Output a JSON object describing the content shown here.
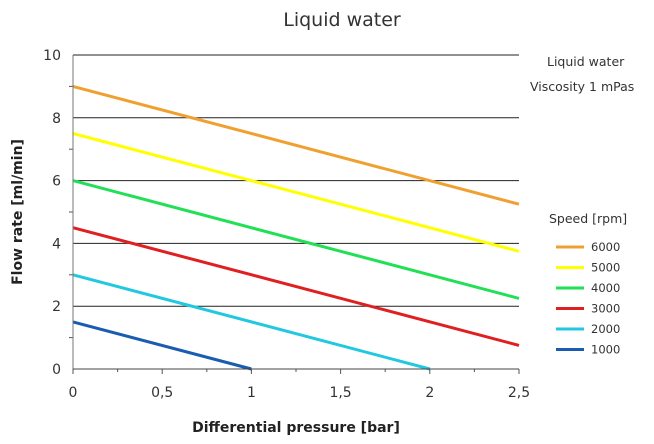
{
  "chart_data": {
    "type": "line",
    "title": "Liquid water",
    "xlabel": "Differential pressure [bar]",
    "ylabel": "Flow rate [ml/min]",
    "xlim": [
      0,
      2.5
    ],
    "ylim": [
      0,
      10
    ],
    "xticks": [
      "0",
      "0,5",
      "1",
      "1,5",
      "2",
      "2,5"
    ],
    "yticks": [
      "0",
      "2",
      "4",
      "6",
      "8",
      "10"
    ],
    "grid": "horizontal",
    "annotations": [
      "Liquid water",
      "Viscosity 1 mPas"
    ],
    "legend_title": "Speed [rpm]",
    "legend_position": "right",
    "series": [
      {
        "name": "6000",
        "color": "#f0a030",
        "x": [
          0,
          2.5
        ],
        "y": [
          9.0,
          5.25
        ]
      },
      {
        "name": "5000",
        "color": "#ffff00",
        "x": [
          0,
          2.5
        ],
        "y": [
          7.5,
          3.75
        ]
      },
      {
        "name": "4000",
        "color": "#22e055",
        "x": [
          0,
          2.5
        ],
        "y": [
          6.0,
          2.25
        ]
      },
      {
        "name": "3000",
        "color": "#e02020",
        "x": [
          0,
          2.5
        ],
        "y": [
          4.5,
          0.75
        ]
      },
      {
        "name": "2000",
        "color": "#22c8e0",
        "x": [
          0,
          2.0
        ],
        "y": [
          3.0,
          0.0
        ]
      },
      {
        "name": "1000",
        "color": "#1a5cb0",
        "x": [
          0,
          1.0
        ],
        "y": [
          1.5,
          0.0
        ]
      }
    ]
  }
}
